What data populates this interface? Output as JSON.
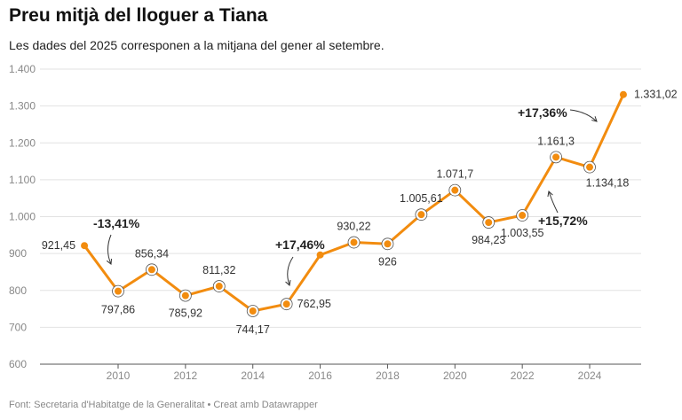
{
  "title": "Preu mitjà del lloguer a Tiana",
  "subtitle": "Les dades del 2025 corresponen a la mitjana del gener al setembre.",
  "footer": "Font: Secretaria d'Habitatge de la Generalitat • Creat amb Datawrapper",
  "chart_data": {
    "type": "line",
    "x": [
      2009,
      2010,
      2011,
      2012,
      2013,
      2014,
      2015,
      2016,
      2017,
      2018,
      2019,
      2020,
      2021,
      2022,
      2023,
      2024,
      2025
    ],
    "values": [
      921.45,
      797.86,
      856.34,
      785.92,
      811.32,
      744.17,
      762.95,
      896.16,
      930.22,
      926,
      1005.61,
      1071.7,
      984.23,
      1003.55,
      1161.3,
      1134.18,
      1331.02
    ],
    "data_labels": [
      "921,45",
      "797,86",
      "856,34",
      "785,92",
      "811,32",
      "744,17",
      "762,95",
      "",
      "930,22",
      "926",
      "1.005,61",
      "1.071,7",
      "984,23",
      "1.003,55",
      "1.161,3",
      "1.134,18",
      "1.331,02"
    ],
    "ylim": [
      600,
      1400
    ],
    "yticks": [
      600,
      700,
      800,
      900,
      1000,
      1100,
      1200,
      1300,
      1400
    ],
    "ytick_labels": [
      "600",
      "700",
      "800",
      "900",
      "1.000",
      "1.100",
      "1.200",
      "1.300",
      "1.400"
    ],
    "xticks": [
      2010,
      2012,
      2014,
      2016,
      2018,
      2020,
      2022,
      2024
    ],
    "xtick_labels": [
      "2010",
      "2012",
      "2014",
      "2016",
      "2018",
      "2020",
      "2022",
      "2024"
    ],
    "grid": true,
    "line_color": "#f28c0f",
    "annotations": [
      {
        "text": "-13,41%"
      },
      {
        "text": "+17,46%"
      },
      {
        "text": "+15,72%"
      },
      {
        "text": "+17,36%"
      }
    ]
  }
}
